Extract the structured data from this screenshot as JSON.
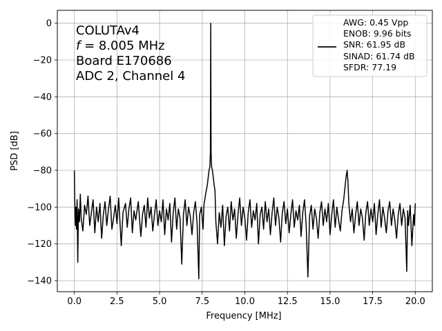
{
  "chart_data": {
    "type": "line",
    "xlabel": "Frequency [MHz]",
    "ylabel": "PSD [dB]",
    "xlim": [
      -1.0,
      21.0
    ],
    "ylim": [
      -146,
      7
    ],
    "xticks": [
      0.0,
      2.5,
      5.0,
      7.5,
      10.0,
      12.5,
      15.0,
      17.5,
      20.0
    ],
    "xtick_labels": [
      "0.0",
      "2.5",
      "5.0",
      "7.5",
      "10.0",
      "12.5",
      "15.0",
      "17.5",
      "20.0"
    ],
    "yticks": [
      0,
      -20,
      -40,
      -60,
      -80,
      -100,
      -120,
      -140
    ],
    "ytick_labels": [
      "0",
      "−20",
      "−40",
      "−60",
      "−80",
      "−100",
      "−120",
      "−140"
    ],
    "grid": true,
    "legend_position": "top-right",
    "annotation": {
      "line1": "COLUTAv4",
      "line2_var": "f",
      "line2_rest": " = 8.005 MHz",
      "line3": "Board E170686",
      "line4": "ADC 2, Channel 4"
    },
    "legend_lines": [
      "AWG: 0.45 Vpp",
      "ENOB: 9.96 bits",
      "SNR: 61.95 dB",
      "SINAD: 61.74 dB",
      "SFDR: 77.19"
    ],
    "line_color": "#000000",
    "series": [
      {
        "points": [
          [
            0.0,
            -80
          ],
          [
            0.01,
            -87
          ],
          [
            0.02,
            -95
          ],
          [
            0.04,
            -105
          ],
          [
            0.06,
            -110
          ],
          [
            0.09,
            -100
          ],
          [
            0.12,
            -112
          ],
          [
            0.16,
            -96
          ],
          [
            0.2,
            -130
          ],
          [
            0.24,
            -101
          ],
          [
            0.3,
            -108
          ],
          [
            0.35,
            -93
          ],
          [
            0.4,
            -106
          ],
          [
            0.5,
            -113
          ],
          [
            0.6,
            -99
          ],
          [
            0.7,
            -104
          ],
          [
            0.8,
            -94
          ],
          [
            0.9,
            -110
          ],
          [
            1.0,
            -103
          ],
          [
            1.1,
            -96
          ],
          [
            1.2,
            -114
          ],
          [
            1.3,
            -100
          ],
          [
            1.4,
            -108
          ],
          [
            1.5,
            -98
          ],
          [
            1.6,
            -117
          ],
          [
            1.7,
            -104
          ],
          [
            1.8,
            -97
          ],
          [
            1.9,
            -110
          ],
          [
            2.0,
            -101
          ],
          [
            2.1,
            -94
          ],
          [
            2.2,
            -112
          ],
          [
            2.3,
            -106
          ],
          [
            2.4,
            -99
          ],
          [
            2.5,
            -109
          ],
          [
            2.6,
            -95
          ],
          [
            2.75,
            -121
          ],
          [
            2.85,
            -103
          ],
          [
            3.0,
            -98
          ],
          [
            3.1,
            -111
          ],
          [
            3.2,
            -101
          ],
          [
            3.3,
            -95
          ],
          [
            3.4,
            -114
          ],
          [
            3.5,
            -102
          ],
          [
            3.6,
            -107
          ],
          [
            3.75,
            -97
          ],
          [
            3.9,
            -116
          ],
          [
            4.0,
            -104
          ],
          [
            4.1,
            -99
          ],
          [
            4.2,
            -111
          ],
          [
            4.3,
            -95
          ],
          [
            4.4,
            -106
          ],
          [
            4.5,
            -100
          ],
          [
            4.6,
            -113
          ],
          [
            4.7,
            -104
          ],
          [
            4.8,
            -96
          ],
          [
            4.9,
            -110
          ],
          [
            5.0,
            -102
          ],
          [
            5.1,
            -108
          ],
          [
            5.2,
            -96
          ],
          [
            5.3,
            -115
          ],
          [
            5.4,
            -101
          ],
          [
            5.5,
            -107
          ],
          [
            5.6,
            -98
          ],
          [
            5.7,
            -119
          ],
          [
            5.8,
            -103
          ],
          [
            5.9,
            -95
          ],
          [
            6.0,
            -112
          ],
          [
            6.1,
            -101
          ],
          [
            6.2,
            -106
          ],
          [
            6.3,
            -131
          ],
          [
            6.4,
            -104
          ],
          [
            6.5,
            -96
          ],
          [
            6.6,
            -110
          ],
          [
            6.7,
            -100
          ],
          [
            6.8,
            -105
          ],
          [
            6.9,
            -115
          ],
          [
            7.0,
            -103
          ],
          [
            7.1,
            -97
          ],
          [
            7.2,
            -109
          ],
          [
            7.3,
            -139
          ],
          [
            7.35,
            -104
          ],
          [
            7.45,
            -100
          ],
          [
            7.55,
            -112
          ],
          [
            7.6,
            -99
          ],
          [
            7.7,
            -93
          ],
          [
            7.8,
            -88
          ],
          [
            7.85,
            -84
          ],
          [
            7.9,
            -80
          ],
          [
            7.95,
            -78
          ],
          [
            7.98,
            -70
          ],
          [
            8.0,
            0
          ],
          [
            8.02,
            -70
          ],
          [
            8.05,
            -78
          ],
          [
            8.1,
            -80
          ],
          [
            8.15,
            -84
          ],
          [
            8.2,
            -88
          ],
          [
            8.25,
            -91
          ],
          [
            8.3,
            -108
          ],
          [
            8.4,
            -120
          ],
          [
            8.5,
            -103
          ],
          [
            8.6,
            -111
          ],
          [
            8.7,
            -99
          ],
          [
            8.8,
            -121
          ],
          [
            8.9,
            -105
          ],
          [
            9.0,
            -100
          ],
          [
            9.1,
            -113
          ],
          [
            9.2,
            -97
          ],
          [
            9.3,
            -107
          ],
          [
            9.4,
            -101
          ],
          [
            9.5,
            -117
          ],
          [
            9.6,
            -104
          ],
          [
            9.7,
            -95
          ],
          [
            9.8,
            -110
          ],
          [
            9.9,
            -100
          ],
          [
            10.0,
            -106
          ],
          [
            10.1,
            -118
          ],
          [
            10.2,
            -103
          ],
          [
            10.3,
            -96
          ],
          [
            10.4,
            -111
          ],
          [
            10.5,
            -102
          ],
          [
            10.6,
            -107
          ],
          [
            10.7,
            -98
          ],
          [
            10.8,
            -120
          ],
          [
            10.9,
            -104
          ],
          [
            11.0,
            -100
          ],
          [
            11.1,
            -112
          ],
          [
            11.2,
            -97
          ],
          [
            11.3,
            -108
          ],
          [
            11.4,
            -101
          ],
          [
            11.5,
            -115
          ],
          [
            11.6,
            -103
          ],
          [
            11.7,
            -95
          ],
          [
            11.8,
            -110
          ],
          [
            11.9,
            -100
          ],
          [
            12.0,
            -106
          ],
          [
            12.1,
            -119
          ],
          [
            12.2,
            -103
          ],
          [
            12.3,
            -97
          ],
          [
            12.4,
            -109
          ],
          [
            12.5,
            -101
          ],
          [
            12.6,
            -114
          ],
          [
            12.7,
            -104
          ],
          [
            12.8,
            -96
          ],
          [
            12.9,
            -111
          ],
          [
            13.0,
            -102
          ],
          [
            13.1,
            -107
          ],
          [
            13.2,
            -99
          ],
          [
            13.3,
            -116
          ],
          [
            13.4,
            -103
          ],
          [
            13.5,
            -96
          ],
          [
            13.6,
            -110
          ],
          [
            13.7,
            -138
          ],
          [
            13.8,
            -105
          ],
          [
            13.9,
            -99
          ],
          [
            14.0,
            -112
          ],
          [
            14.1,
            -101
          ],
          [
            14.2,
            -106
          ],
          [
            14.3,
            -117
          ],
          [
            14.4,
            -103
          ],
          [
            14.5,
            -97
          ],
          [
            14.6,
            -110
          ],
          [
            14.7,
            -101
          ],
          [
            14.8,
            -108
          ],
          [
            14.9,
            -98
          ],
          [
            15.0,
            -115
          ],
          [
            15.1,
            -104
          ],
          [
            15.2,
            -96
          ],
          [
            15.3,
            -111
          ],
          [
            15.4,
            -100
          ],
          [
            15.5,
            -107
          ],
          [
            15.6,
            -113
          ],
          [
            15.7,
            -102
          ],
          [
            15.8,
            -96
          ],
          [
            15.9,
            -87
          ],
          [
            15.95,
            -83
          ],
          [
            16.0,
            -80
          ],
          [
            16.05,
            -86
          ],
          [
            16.1,
            -98
          ],
          [
            16.2,
            -108
          ],
          [
            16.3,
            -101
          ],
          [
            16.4,
            -114
          ],
          [
            16.5,
            -104
          ],
          [
            16.6,
            -97
          ],
          [
            16.7,
            -110
          ],
          [
            16.8,
            -101
          ],
          [
            16.9,
            -106
          ],
          [
            17.0,
            -118
          ],
          [
            17.1,
            -103
          ],
          [
            17.2,
            -97
          ],
          [
            17.3,
            -110
          ],
          [
            17.4,
            -101
          ],
          [
            17.5,
            -108
          ],
          [
            17.6,
            -98
          ],
          [
            17.7,
            -115
          ],
          [
            17.8,
            -104
          ],
          [
            17.9,
            -96
          ],
          [
            18.0,
            -111
          ],
          [
            18.1,
            -100
          ],
          [
            18.2,
            -106
          ],
          [
            18.3,
            -114
          ],
          [
            18.4,
            -102
          ],
          [
            18.5,
            -97
          ],
          [
            18.6,
            -110
          ],
          [
            18.7,
            -101
          ],
          [
            18.8,
            -107
          ],
          [
            18.9,
            -117
          ],
          [
            19.0,
            -104
          ],
          [
            19.1,
            -98
          ],
          [
            19.2,
            -110
          ],
          [
            19.3,
            -101
          ],
          [
            19.4,
            -106
          ],
          [
            19.5,
            -135
          ],
          [
            19.55,
            -102
          ],
          [
            19.6,
            -110
          ],
          [
            19.7,
            -99
          ],
          [
            19.8,
            -121
          ],
          [
            19.9,
            -104
          ],
          [
            19.95,
            -110
          ],
          [
            20.0,
            -98
          ]
        ]
      }
    ]
  }
}
